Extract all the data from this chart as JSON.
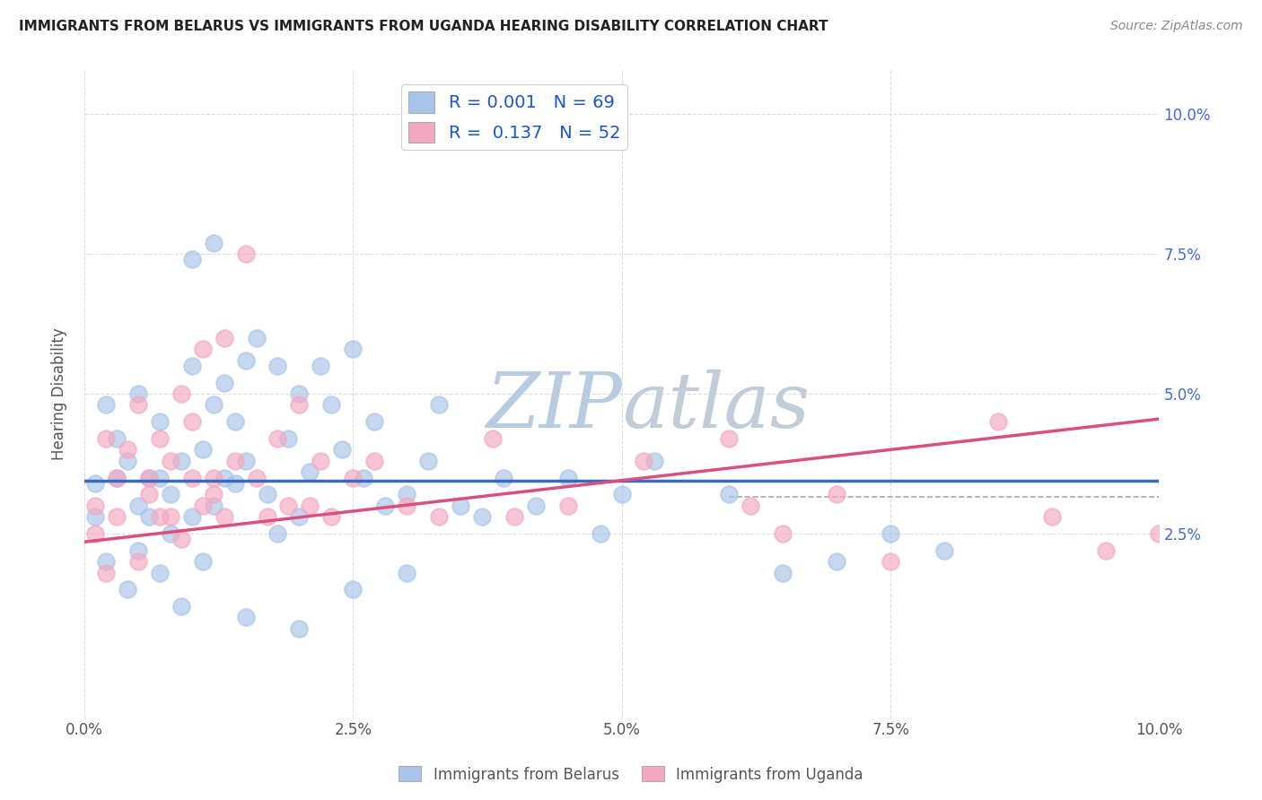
{
  "title": "IMMIGRANTS FROM BELARUS VS IMMIGRANTS FROM UGANDA HEARING DISABILITY CORRELATION CHART",
  "source": "Source: ZipAtlas.com",
  "ylabel": "Hearing Disability",
  "xlim": [
    0.0,
    0.1
  ],
  "ylim": [
    -0.008,
    0.108
  ],
  "legend_r1": "0.001",
  "legend_n1": "69",
  "legend_r2": "0.137",
  "legend_n2": "52",
  "color_belarus": "#a8c4e8",
  "color_uganda": "#f4a8c0",
  "trendline_color_belarus": "#3a6abf",
  "trendline_color_uganda": "#d94f80",
  "watermark_color": "#ccd8ea",
  "background_color": "#ffffff",
  "belarus_trend_start_y": 0.0345,
  "belarus_trend_end_y": 0.0345,
  "uganda_trend_start_y": 0.0235,
  "uganda_trend_end_y": 0.0455,
  "dashed_line_y": 0.0315,
  "belarus_scatter_x": [
    0.001,
    0.001,
    0.002,
    0.002,
    0.003,
    0.003,
    0.004,
    0.004,
    0.005,
    0.005,
    0.005,
    0.006,
    0.006,
    0.007,
    0.007,
    0.007,
    0.008,
    0.008,
    0.009,
    0.009,
    0.01,
    0.01,
    0.011,
    0.011,
    0.012,
    0.012,
    0.013,
    0.013,
    0.014,
    0.014,
    0.015,
    0.015,
    0.016,
    0.017,
    0.018,
    0.018,
    0.019,
    0.02,
    0.02,
    0.021,
    0.022,
    0.023,
    0.024,
    0.025,
    0.026,
    0.027,
    0.028,
    0.03,
    0.032,
    0.033,
    0.035,
    0.037,
    0.039,
    0.042,
    0.045,
    0.048,
    0.05,
    0.053,
    0.06,
    0.065,
    0.07,
    0.075,
    0.08,
    0.015,
    0.02,
    0.025,
    0.03,
    0.01,
    0.012
  ],
  "belarus_scatter_y": [
    0.034,
    0.028,
    0.048,
    0.02,
    0.035,
    0.042,
    0.015,
    0.038,
    0.022,
    0.05,
    0.03,
    0.028,
    0.035,
    0.018,
    0.045,
    0.035,
    0.025,
    0.032,
    0.012,
    0.038,
    0.055,
    0.028,
    0.04,
    0.02,
    0.048,
    0.03,
    0.052,
    0.035,
    0.045,
    0.034,
    0.038,
    0.056,
    0.06,
    0.032,
    0.055,
    0.025,
    0.042,
    0.028,
    0.05,
    0.036,
    0.055,
    0.048,
    0.04,
    0.058,
    0.035,
    0.045,
    0.03,
    0.032,
    0.038,
    0.048,
    0.03,
    0.028,
    0.035,
    0.03,
    0.035,
    0.025,
    0.032,
    0.038,
    0.032,
    0.018,
    0.02,
    0.025,
    0.022,
    0.01,
    0.008,
    0.015,
    0.018,
    0.074,
    0.077
  ],
  "uganda_scatter_x": [
    0.001,
    0.001,
    0.002,
    0.002,
    0.003,
    0.003,
    0.004,
    0.005,
    0.005,
    0.006,
    0.006,
    0.007,
    0.007,
    0.008,
    0.008,
    0.009,
    0.009,
    0.01,
    0.01,
    0.011,
    0.011,
    0.012,
    0.012,
    0.013,
    0.013,
    0.014,
    0.015,
    0.016,
    0.017,
    0.018,
    0.019,
    0.02,
    0.021,
    0.022,
    0.023,
    0.025,
    0.027,
    0.03,
    0.033,
    0.038,
    0.04,
    0.045,
    0.052,
    0.06,
    0.062,
    0.065,
    0.07,
    0.075,
    0.085,
    0.09,
    0.095,
    0.1
  ],
  "uganda_scatter_y": [
    0.03,
    0.025,
    0.042,
    0.018,
    0.035,
    0.028,
    0.04,
    0.048,
    0.02,
    0.035,
    0.032,
    0.028,
    0.042,
    0.038,
    0.028,
    0.05,
    0.024,
    0.035,
    0.045,
    0.03,
    0.058,
    0.032,
    0.035,
    0.06,
    0.028,
    0.038,
    0.075,
    0.035,
    0.028,
    0.042,
    0.03,
    0.048,
    0.03,
    0.038,
    0.028,
    0.035,
    0.038,
    0.03,
    0.028,
    0.042,
    0.028,
    0.03,
    0.038,
    0.042,
    0.03,
    0.025,
    0.032,
    0.02,
    0.045,
    0.028,
    0.022,
    0.025
  ]
}
